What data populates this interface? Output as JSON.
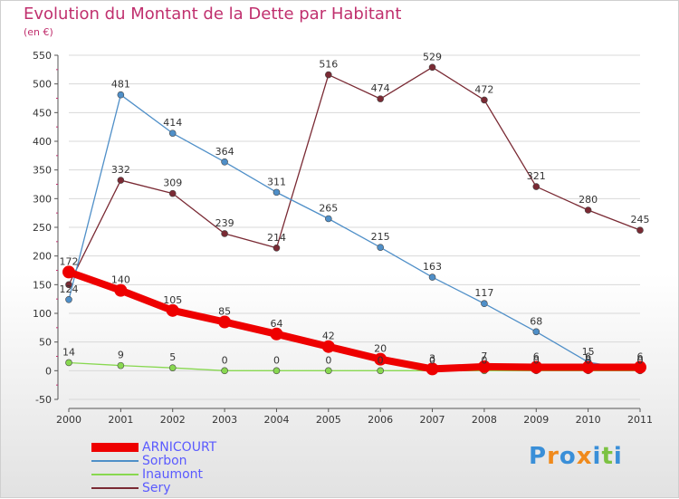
{
  "chart_data": {
    "type": "line",
    "title": "Evolution du Montant de la Dette par Habitant",
    "subtitle": "(en €)",
    "categories": [
      "2000",
      "2001",
      "2002",
      "2003",
      "2004",
      "2005",
      "2006",
      "2007",
      "2008",
      "2009",
      "2010",
      "2011"
    ],
    "ylim": [
      -50,
      550
    ],
    "yticks": [
      -50,
      0,
      50,
      100,
      150,
      200,
      250,
      300,
      350,
      400,
      450,
      500,
      550
    ],
    "legend_position": "bottom-left",
    "series": [
      {
        "name": "ARNICOURT",
        "color": "#ee0000",
        "values": [
          172,
          140,
          105,
          85,
          64,
          42,
          20,
          3,
          7,
          6,
          6,
          6
        ],
        "labels": [
          "172",
          "140",
          "105",
          "85",
          "64",
          "42",
          "20",
          "3",
          "7",
          "6",
          "6",
          "6"
        ]
      },
      {
        "name": "Sorbon",
        "color": "#4f8fc8",
        "values": [
          124,
          481,
          414,
          364,
          311,
          265,
          215,
          163,
          117,
          68,
          15,
          0
        ],
        "labels": [
          "124",
          "481",
          "414",
          "364",
          "311",
          "265",
          "215",
          "163",
          "117",
          "68",
          "15",
          "0"
        ]
      },
      {
        "name": "Inaumont",
        "color": "#88d850",
        "values": [
          14,
          9,
          5,
          0,
          0,
          0,
          0,
          0,
          0,
          0,
          0,
          0
        ],
        "labels": [
          "14",
          "9",
          "5",
          "0",
          "0",
          "0",
          "0",
          "0",
          "0",
          "0",
          "0",
          "0"
        ]
      },
      {
        "name": "Sery",
        "color": "#7a2a34",
        "values": [
          150,
          332,
          309,
          239,
          214,
          516,
          474,
          529,
          472,
          321,
          280,
          245
        ],
        "labels": [
          "",
          "332",
          "309",
          "239",
          "214",
          "516",
          "474",
          "529",
          "472",
          "321",
          "280",
          "245"
        ]
      }
    ]
  },
  "logo": {
    "text": "Proxiti",
    "letters": [
      "P",
      "r",
      "o",
      "x",
      "i",
      "t",
      "i"
    ],
    "colors": [
      "#3a8fd8",
      "#f08a1c",
      "#3a8fd8",
      "#f08a1c",
      "#3a8fd8",
      "#7cc242",
      "#3a8fd8"
    ]
  }
}
